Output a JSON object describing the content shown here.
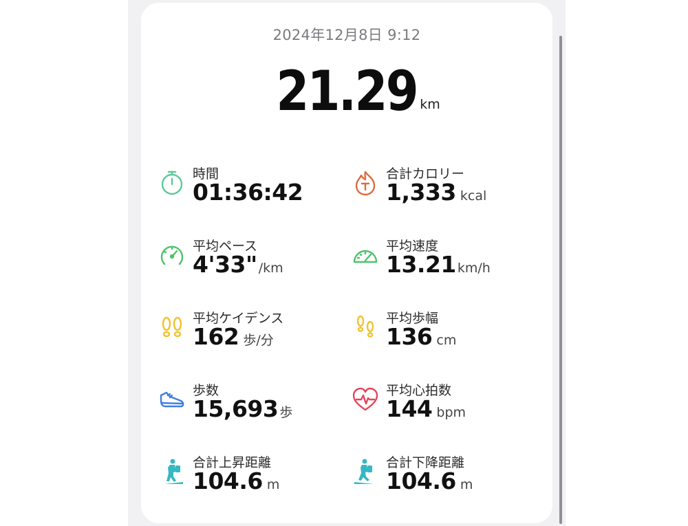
{
  "header": {
    "date": "2024年12月8日 9:12"
  },
  "distance": {
    "value": "21.29",
    "unit": "km"
  },
  "metrics": [
    {
      "label": "時間",
      "value": "01:36:42",
      "unit": "",
      "icon": "stopwatch-icon",
      "color": "#5cc99a"
    },
    {
      "label": "合計カロリー",
      "value": "1,333",
      "unit": "kcal",
      "icon": "calorie-flame-icon",
      "color": "#e06a3f"
    },
    {
      "label": "平均ペース",
      "value": "4'33\"",
      "unit": "/km",
      "icon": "pace-gauge-icon",
      "color": "#4cc46a"
    },
    {
      "label": "平均速度",
      "value": "13.21",
      "unit": "km/h",
      "icon": "speedometer-icon",
      "color": "#4cc46a"
    },
    {
      "label": "平均ケイデンス",
      "value": "162",
      "unit": "歩/分",
      "icon": "footprints-icon",
      "color": "#f2c12e"
    },
    {
      "label": "平均歩幅",
      "value": "136",
      "unit": "cm",
      "icon": "footsteps-icon",
      "color": "#f2c12e"
    },
    {
      "label": "歩数",
      "value": "15,693",
      "unit": "歩",
      "icon": "running-shoe-icon",
      "color": "#3d7de0"
    },
    {
      "label": "平均心拍数",
      "value": "144",
      "unit": "bpm",
      "icon": "heart-rate-icon",
      "color": "#e8435a"
    },
    {
      "label": "合計上昇距離",
      "value": "104.6",
      "unit": "m",
      "icon": "hiker-uphill-icon",
      "color": "#35b8c4"
    },
    {
      "label": "合計下降距離",
      "value": "104.6",
      "unit": "m",
      "icon": "hiker-downhill-icon",
      "color": "#35b8c4"
    }
  ]
}
